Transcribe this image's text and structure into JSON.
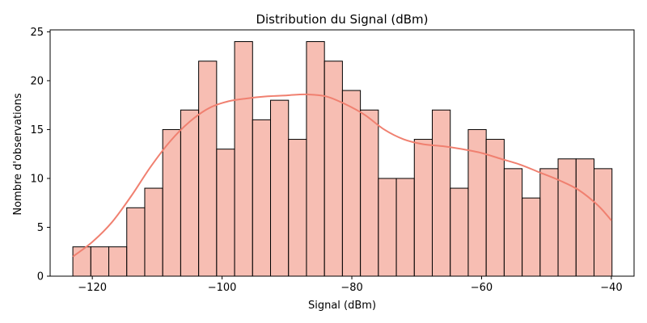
{
  "chart_data": {
    "type": "bar",
    "subtype": "histogram-with-kde",
    "title": "Distribution du Signal (dBm)",
    "xlabel": "Signal (dBm)",
    "ylabel": "Nombre d'observations",
    "xlim": [
      -126.5,
      -36.5
    ],
    "ylim": [
      0,
      25.2
    ],
    "xticks": [
      -120,
      -100,
      -80,
      -60,
      -40
    ],
    "xtick_labels": [
      "−120",
      "−100",
      "−80",
      "−60",
      "−40"
    ],
    "yticks": [
      0,
      5,
      10,
      15,
      20,
      25
    ],
    "grid": false,
    "legend": "none",
    "bar_color": "#f4a393",
    "bar_alpha": 0.7,
    "bar_edge_color": "#000000",
    "kde_color": "#f08070",
    "bins": {
      "start": -123.0,
      "width": 2.77,
      "counts": [
        3,
        3,
        3,
        7,
        9,
        15,
        17,
        22,
        13,
        24,
        16,
        18,
        14,
        24,
        22,
        19,
        17,
        10,
        10,
        14,
        17,
        9,
        15,
        14,
        11,
        8,
        11,
        12,
        12,
        11
      ]
    },
    "kde": {
      "x": [
        -123,
        -120,
        -117,
        -114,
        -111,
        -108,
        -105,
        -102,
        -99,
        -96,
        -93,
        -90,
        -87,
        -84,
        -81,
        -78,
        -75,
        -72,
        -69,
        -66,
        -63,
        -60,
        -57,
        -54,
        -51,
        -48,
        -45,
        -42,
        -40
      ],
      "y": [
        2.0,
        3.5,
        5.5,
        8.2,
        11.2,
        13.8,
        15.8,
        17.2,
        17.9,
        18.2,
        18.4,
        18.5,
        18.6,
        18.4,
        17.6,
        16.5,
        15.0,
        14.0,
        13.5,
        13.3,
        13.0,
        12.6,
        12.0,
        11.4,
        10.6,
        9.8,
        8.8,
        7.2,
        5.7
      ]
    }
  }
}
